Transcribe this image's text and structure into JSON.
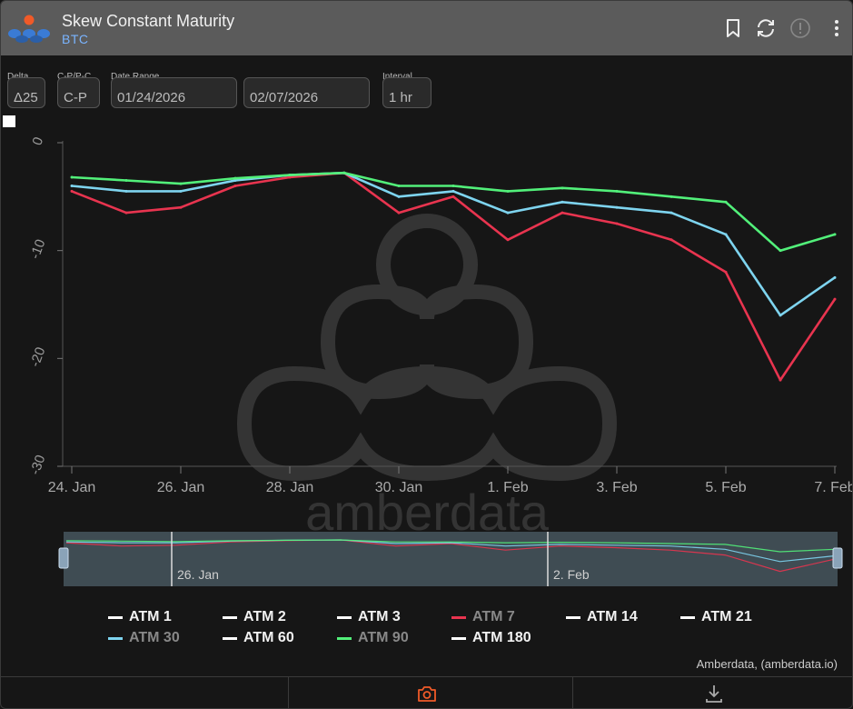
{
  "header": {
    "title": "Skew Constant Maturity",
    "subtitle": "BTC"
  },
  "controls": {
    "delta_label": "Delta",
    "delta_value": "Δ25",
    "cpc_label": "C-P/P-C",
    "cpc_value": "C-P",
    "date_range_label": "Date Range",
    "date_start": "01/24/2026",
    "date_end": "02/07/2026",
    "interval_label": "Interval",
    "interval_value": "1 hr"
  },
  "watermark": "amberdata",
  "navigator": {
    "labels": [
      "26. Jan",
      "2. Feb"
    ]
  },
  "credit": "Amberdata, (amberdata.io)",
  "colors": {
    "background": "#161616",
    "header": "#5b5b5b",
    "atm7": "#e8344f",
    "atm30": "#7ed4ef",
    "atm90": "#52f07a",
    "accent_camera": "#f05a28"
  },
  "icons": [
    "bookmark-icon",
    "refresh-icon",
    "info-icon",
    "more-icon",
    "camera-icon",
    "download-icon"
  ],
  "chart_data": {
    "type": "line",
    "title": "",
    "xlabel": "",
    "ylabel": "",
    "x_tick_labels": [
      "24. Jan",
      "26. Jan",
      "28. Jan",
      "30. Jan",
      "1. Feb",
      "3. Feb",
      "5. Feb",
      "7. Feb"
    ],
    "y_tick_labels": [
      "0",
      "-10",
      "-20",
      "-30"
    ],
    "ylim": [
      -30,
      0
    ],
    "xlim_days": [
      "2026-01-24",
      "2026-02-07"
    ],
    "x": [
      "2026-01-24",
      "2026-01-25",
      "2026-01-26",
      "2026-01-27",
      "2026-01-28",
      "2026-01-29",
      "2026-01-30",
      "2026-01-31",
      "2026-02-01",
      "2026-02-02",
      "2026-02-03",
      "2026-02-04",
      "2026-02-05",
      "2026-02-06",
      "2026-02-07"
    ],
    "legend": [
      {
        "name": "ATM 1",
        "color": "#ffffff",
        "hidden": false
      },
      {
        "name": "ATM 2",
        "color": "#ffffff",
        "hidden": false
      },
      {
        "name": "ATM 3",
        "color": "#ffffff",
        "hidden": false
      },
      {
        "name": "ATM 7",
        "color": "#e8344f",
        "hidden": true
      },
      {
        "name": "ATM 14",
        "color": "#ffffff",
        "hidden": false
      },
      {
        "name": "ATM 21",
        "color": "#ffffff",
        "hidden": false
      },
      {
        "name": "ATM 30",
        "color": "#7ed4ef",
        "hidden": true
      },
      {
        "name": "ATM 60",
        "color": "#ffffff",
        "hidden": false
      },
      {
        "name": "ATM 90",
        "color": "#52f07a",
        "hidden": true
      },
      {
        "name": "ATM 180",
        "color": "#ffffff",
        "hidden": false
      }
    ],
    "series": [
      {
        "name": "ATM 7",
        "color": "#e8344f",
        "values": [
          -4.5,
          -6.5,
          -6.0,
          -4.0,
          -3.2,
          -2.8,
          -6.5,
          -5.0,
          -9.0,
          -6.5,
          -7.5,
          -9.0,
          -12.0,
          -22.0,
          -14.5
        ]
      },
      {
        "name": "ATM 30",
        "color": "#7ed4ef",
        "values": [
          -4.0,
          -4.5,
          -4.5,
          -3.5,
          -3.0,
          -2.8,
          -5.0,
          -4.5,
          -6.5,
          -5.5,
          -6.0,
          -6.5,
          -8.5,
          -16.0,
          -12.5
        ]
      },
      {
        "name": "ATM 90",
        "color": "#52f07a",
        "values": [
          -3.2,
          -3.5,
          -3.8,
          -3.3,
          -3.0,
          -2.8,
          -4.0,
          -4.0,
          -4.5,
          -4.2,
          -4.5,
          -5.0,
          -5.5,
          -10.0,
          -8.5
        ]
      }
    ]
  }
}
